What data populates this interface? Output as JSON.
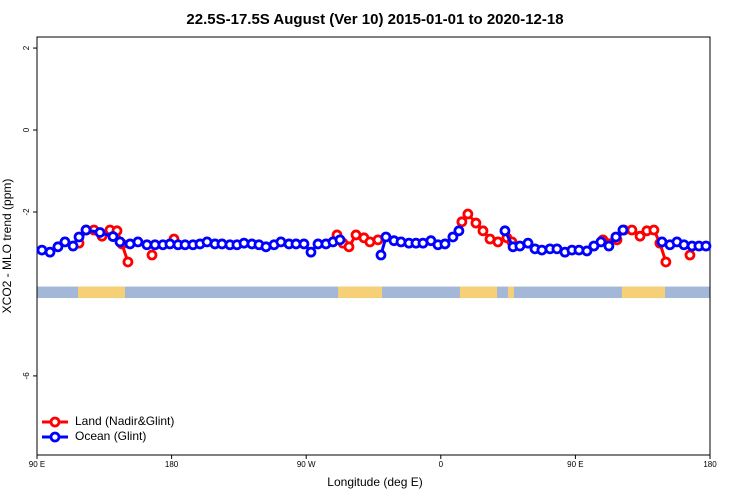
{
  "chart_data": {
    "type": "line",
    "title": "22.5S-17.5S August (Ver 10)   2015-01-01 to 2020-12-18",
    "x_label": "Longitude (deg E)",
    "y_label": "XCO2 - MLO trend (ppm)",
    "xlim": [
      90,
      540
    ],
    "ylim": [
      -7.93,
      2.27
    ],
    "xticks": [
      {
        "value": 90,
        "label": "90 E"
      },
      180,
      {
        "value": 270,
        "label": "90 W"
      },
      {
        "value": 360,
        "label": "0"
      },
      {
        "value": 450,
        "label": "90 E"
      },
      {
        "value": 540,
        "label": "180"
      }
    ],
    "yticks": [
      -6,
      -2,
      0,
      2
    ],
    "legend": "bottom-left",
    "surface_band": {
      "range": [
        -3.82,
        -4.1
      ],
      "ocean_color": "#a3b8d8",
      "land_color": "#f5d076",
      "land": [
        [
          117.4,
          148.8
        ],
        [
          291.3,
          320.7
        ],
        [
          372.8,
          397.6
        ],
        [
          404.9,
          408.9
        ],
        [
          481.1,
          509.9
        ]
      ]
    },
    "series": [
      {
        "name": "Land (Nadir&Glint)",
        "color": "#ff0000",
        "x": [
          118.1,
          122.8,
          128.1,
          133.5,
          138.8,
          143.5,
          146.8,
          150.8,
          null,
          166.9,
          null,
          181.6,
          null,
          290.6,
          294.6,
          298.6,
          303.3,
          308.6,
          312.6,
          318.0,
          null,
          374.1,
          378.1,
          383.5,
          388.2,
          392.9,
          398.2,
          null,
          404.2,
          407.6,
          null,
          468.4,
          477.8,
          482.5,
          487.8,
          493.2,
          497.8,
          502.5,
          506.5,
          510.5,
          null,
          526.6
        ],
        "values": [
          -2.76,
          -2.44,
          -2.44,
          -2.59,
          -2.44,
          -2.46,
          -2.78,
          -3.22,
          null,
          -3.05,
          null,
          -2.66,
          null,
          -2.56,
          -2.76,
          -2.85,
          -2.56,
          -2.63,
          -2.73,
          -2.68,
          null,
          -2.24,
          -2.05,
          -2.27,
          -2.46,
          -2.66,
          -2.73,
          null,
          -2.63,
          -2.73,
          null,
          -2.68,
          -2.68,
          -2.44,
          -2.44,
          -2.59,
          -2.46,
          -2.44,
          -2.76,
          -3.22,
          null,
          -3.05
        ]
      },
      {
        "name": "Ocean (Glint)",
        "color": "#0000ff",
        "x": [
          93.3,
          98.7,
          104.0,
          108.7,
          114.1,
          118.1,
          122.8,
          132.1,
          140.8,
          145.5,
          152.2,
          157.5,
          163.5,
          168.9,
          174.2,
          178.9,
          184.3,
          189.0,
          194.3,
          199.0,
          203.7,
          209.0,
          213.7,
          219.0,
          223.7,
          228.4,
          233.7,
          238.4,
          243.1,
          248.5,
          253.1,
          258.5,
          263.2,
          268.5,
          273.2,
          277.9,
          283.2,
          287.9,
          292.6,
          null,
          320.0,
          323.3,
          328.7,
          333.4,
          338.7,
          343.4,
          348.1,
          353.4,
          358.1,
          362.8,
          368.1,
          372.1,
          null,
          402.9,
          408.3,
          412.9,
          418.3,
          423.0,
          427.6,
          433.0,
          437.7,
          443.0,
          447.7,
          452.4,
          457.7,
          462.4,
          467.1,
          472.4,
          477.1,
          481.8,
          null,
          507.9,
          513.2,
          517.9,
          522.6,
          528.0,
          532.6,
          537.3
        ],
        "values": [
          -2.93,
          -2.98,
          -2.85,
          -2.73,
          -2.83,
          -2.61,
          -2.44,
          -2.5,
          -2.6,
          -2.73,
          -2.78,
          -2.73,
          -2.8,
          -2.8,
          -2.8,
          -2.78,
          -2.8,
          -2.8,
          -2.8,
          -2.78,
          -2.73,
          -2.78,
          -2.78,
          -2.8,
          -2.8,
          -2.76,
          -2.78,
          -2.8,
          -2.85,
          -2.8,
          -2.73,
          -2.78,
          -2.78,
          -2.78,
          -2.98,
          -2.78,
          -2.78,
          -2.73,
          -2.68,
          null,
          -3.05,
          -2.61,
          -2.7,
          -2.73,
          -2.76,
          -2.76,
          -2.76,
          -2.7,
          -2.8,
          -2.78,
          -2.61,
          -2.46,
          null,
          -2.46,
          -2.85,
          -2.83,
          -2.76,
          -2.9,
          -2.93,
          -2.9,
          -2.9,
          -2.98,
          -2.93,
          -2.93,
          -2.95,
          -2.83,
          -2.73,
          -2.83,
          -2.61,
          -2.44,
          null,
          -2.73,
          -2.8,
          -2.73,
          -2.8,
          -2.83,
          -2.83,
          -2.83
        ]
      }
    ]
  }
}
